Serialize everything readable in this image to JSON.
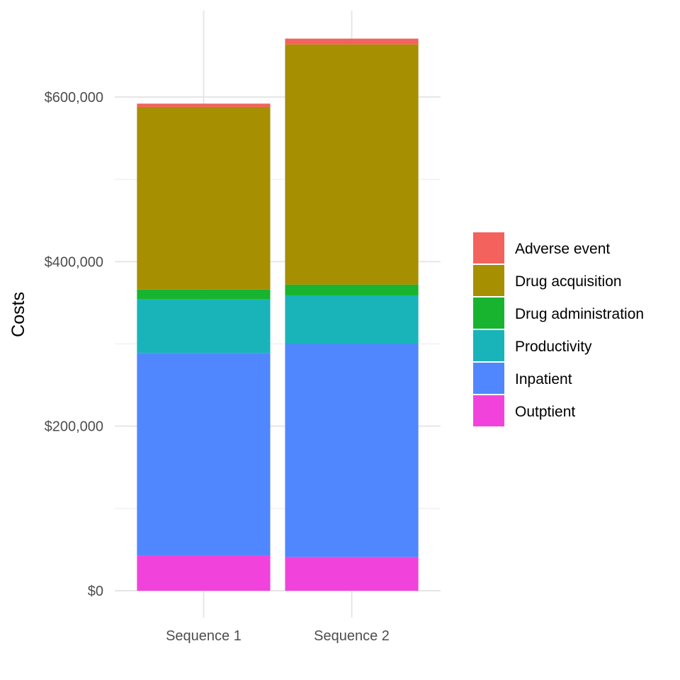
{
  "chart_data": {
    "type": "bar",
    "stacked": true,
    "title": "",
    "xlabel": "",
    "ylabel": "Costs",
    "categories": [
      "Sequence 1",
      "Sequence 2"
    ],
    "ylim": [
      -30000,
      700000
    ],
    "yticks": [
      0,
      200000,
      400000,
      600000
    ],
    "ytick_labels": [
      "$0",
      "$200,000",
      "$400,000",
      "$600,000"
    ],
    "grid": true,
    "legend_position": "right",
    "series": [
      {
        "name": "Outptient",
        "color": "#F143DB",
        "values": [
          43000,
          41000
        ]
      },
      {
        "name": "Inpatient",
        "color": "#5087FF",
        "values": [
          246000,
          259000
        ]
      },
      {
        "name": "Productivity",
        "color": "#19B4B9",
        "values": [
          65000,
          59000
        ]
      },
      {
        "name": "Drug administration",
        "color": "#18B430",
        "values": [
          12000,
          13000
        ]
      },
      {
        "name": "Drug acquisition",
        "color": "#A68F00",
        "values": [
          222000,
          292000
        ]
      },
      {
        "name": "Adverse event",
        "color": "#F3625D",
        "values": [
          4000,
          7000
        ]
      }
    ],
    "legend_order": [
      "Adverse event",
      "Drug acquisition",
      "Drug administration",
      "Productivity",
      "Inpatient",
      "Outptient"
    ]
  }
}
